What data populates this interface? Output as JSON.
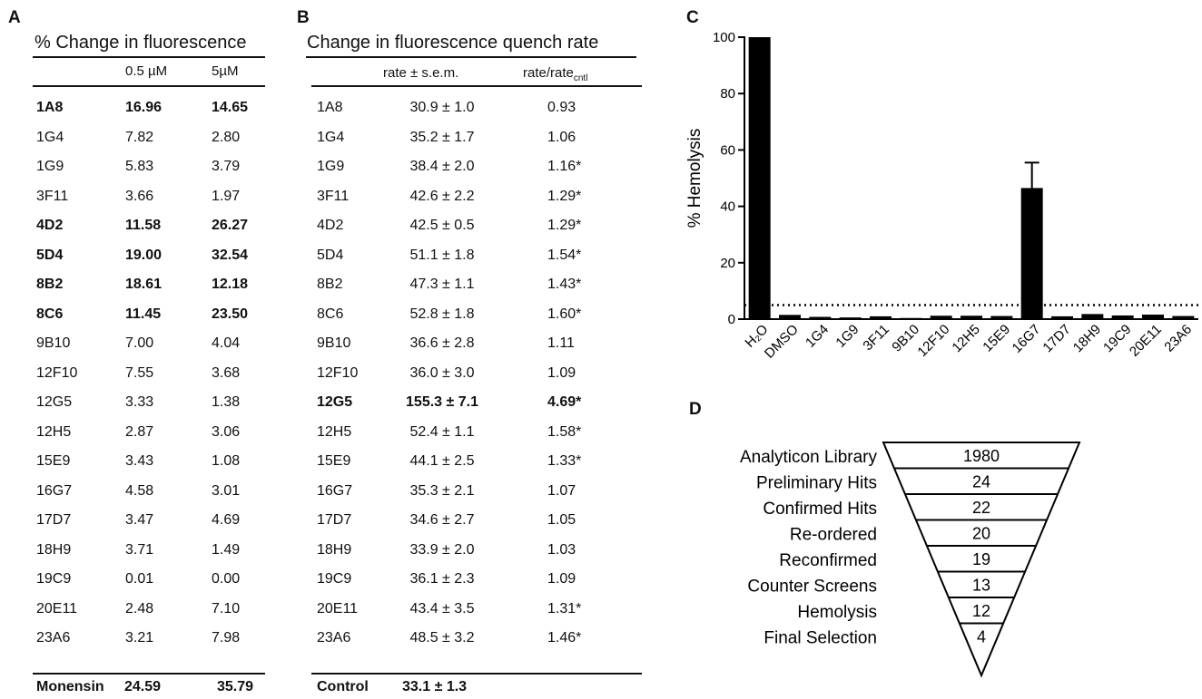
{
  "panel_a": {
    "label": "A",
    "title": "% Change in fluorescence",
    "col_headers": [
      "0.5 µM",
      "5µM"
    ],
    "rows": [
      {
        "name": "1A8",
        "v1": "16.96",
        "v2": "14.65",
        "bold": true
      },
      {
        "name": "1G4",
        "v1": "7.82",
        "v2": "2.80",
        "bold": false
      },
      {
        "name": "1G9",
        "v1": "5.83",
        "v2": "3.79",
        "bold": false
      },
      {
        "name": "3F11",
        "v1": "3.66",
        "v2": "1.97",
        "bold": false
      },
      {
        "name": "4D2",
        "v1": "11.58",
        "v2": "26.27",
        "bold": true
      },
      {
        "name": "5D4",
        "v1": "19.00",
        "v2": "32.54",
        "bold": true
      },
      {
        "name": "8B2",
        "v1": "18.61",
        "v2": "12.18",
        "bold": true
      },
      {
        "name": "8C6",
        "v1": "11.45",
        "v2": "23.50",
        "bold": true
      },
      {
        "name": "9B10",
        "v1": "7.00",
        "v2": "4.04",
        "bold": false
      },
      {
        "name": "12F10",
        "v1": "7.55",
        "v2": "3.68",
        "bold": false
      },
      {
        "name": "12G5",
        "v1": "3.33",
        "v2": "1.38",
        "bold": false
      },
      {
        "name": "12H5",
        "v1": "2.87",
        "v2": "3.06",
        "bold": false
      },
      {
        "name": "15E9",
        "v1": "3.43",
        "v2": "1.08",
        "bold": false
      },
      {
        "name": "16G7",
        "v1": "4.58",
        "v2": "3.01",
        "bold": false
      },
      {
        "name": "17D7",
        "v1": "3.47",
        "v2": "4.69",
        "bold": false
      },
      {
        "name": "18H9",
        "v1": "3.71",
        "v2": "1.49",
        "bold": false
      },
      {
        "name": "19C9",
        "v1": "0.01",
        "v2": "0.00",
        "bold": false
      },
      {
        "name": "20E11",
        "v1": "2.48",
        "v2": "7.10",
        "bold": false
      },
      {
        "name": "23A6",
        "v1": "3.21",
        "v2": "7.98",
        "bold": false
      }
    ],
    "footer": {
      "name": "Monensin",
      "v1": "24.59",
      "v2": "35.79"
    }
  },
  "panel_b": {
    "label": "B",
    "title": "Change in fluorescence quench rate",
    "col1_header": "rate ± s.e.m.",
    "col2_header_main": "rate/rate",
    "col2_header_sub": "cntl",
    "rows": [
      {
        "name": "1A8",
        "rate": "30.9 ± 1.0",
        "ratio": "0.93",
        "bold": false
      },
      {
        "name": "1G4",
        "rate": "35.2 ± 1.7",
        "ratio": "1.06",
        "bold": false
      },
      {
        "name": "1G9",
        "rate": "38.4 ± 2.0",
        "ratio": "1.16*",
        "bold": false
      },
      {
        "name": "3F11",
        "rate": "42.6 ± 2.2",
        "ratio": "1.29*",
        "bold": false
      },
      {
        "name": "4D2",
        "rate": "42.5 ± 0.5",
        "ratio": "1.29*",
        "bold": false
      },
      {
        "name": "5D4",
        "rate": "51.1 ± 1.8",
        "ratio": "1.54*",
        "bold": false
      },
      {
        "name": "8B2",
        "rate": "47.3 ± 1.1",
        "ratio": "1.43*",
        "bold": false
      },
      {
        "name": "8C6",
        "rate": "52.8 ± 1.8",
        "ratio": "1.60*",
        "bold": false
      },
      {
        "name": "9B10",
        "rate": "36.6 ± 2.8",
        "ratio": "1.11",
        "bold": false
      },
      {
        "name": "12F10",
        "rate": "36.0 ± 3.0",
        "ratio": "1.09",
        "bold": false
      },
      {
        "name": "12G5",
        "rate": "155.3 ± 7.1",
        "ratio": "4.69*",
        "bold": true
      },
      {
        "name": "12H5",
        "rate": "52.4 ± 1.1",
        "ratio": "1.58*",
        "bold": false
      },
      {
        "name": "15E9",
        "rate": "44.1 ± 2.5",
        "ratio": "1.33*",
        "bold": false
      },
      {
        "name": "16G7",
        "rate": "35.3 ± 2.1",
        "ratio": "1.07",
        "bold": false
      },
      {
        "name": "17D7",
        "rate": "34.6 ± 2.7",
        "ratio": "1.05",
        "bold": false
      },
      {
        "name": "18H9",
        "rate": "33.9 ± 2.0",
        "ratio": "1.03",
        "bold": false
      },
      {
        "name": "19C9",
        "rate": "36.1 ± 2.3",
        "ratio": "1.09",
        "bold": false
      },
      {
        "name": "20E11",
        "rate": "43.4 ± 3.5",
        "ratio": "1.31*",
        "bold": false
      },
      {
        "name": "23A6",
        "rate": "48.5 ± 3.2",
        "ratio": "1.46*",
        "bold": false
      }
    ],
    "footer": {
      "name": "Control",
      "rate": "33.1 ± 1.3"
    }
  },
  "panel_c": {
    "label": "C"
  },
  "panel_d": {
    "label": "D",
    "stages": [
      {
        "name": "Analyticon Library",
        "count": "1980"
      },
      {
        "name": "Preliminary Hits",
        "count": "24"
      },
      {
        "name": "Confirmed Hits",
        "count": "22"
      },
      {
        "name": "Re-ordered",
        "count": "20"
      },
      {
        "name": "Reconfirmed",
        "count": "19"
      },
      {
        "name": "Counter Screens",
        "count": "13"
      },
      {
        "name": "Hemolysis",
        "count": "12"
      },
      {
        "name": "Final Selection",
        "count": "4"
      }
    ]
  },
  "chart_data": {
    "type": "bar",
    "ylabel": "% Hemolysis",
    "ylim": [
      0,
      100
    ],
    "yticks": [
      0,
      20,
      40,
      60,
      80,
      100
    ],
    "categories": [
      "H₂O",
      "DMSO",
      "1G4",
      "1G9",
      "3F11",
      "9B10",
      "12F10",
      "12H5",
      "15E9",
      "16G7",
      "17D7",
      "18H9",
      "19C9",
      "20E11",
      "23A6"
    ],
    "values": [
      100,
      1.5,
      0.8,
      0.6,
      1.0,
      0.4,
      1.2,
      1.2,
      1.1,
      46.5,
      1.0,
      1.8,
      1.3,
      1.6,
      1.1
    ],
    "errors": [
      0,
      0.3,
      0.2,
      0.2,
      0.3,
      0.2,
      0.3,
      0.3,
      0.3,
      9.0,
      0.3,
      0.5,
      0.3,
      0.4,
      0.3
    ],
    "threshold": 5,
    "threshold_style": "dotted",
    "color": "#000000"
  }
}
